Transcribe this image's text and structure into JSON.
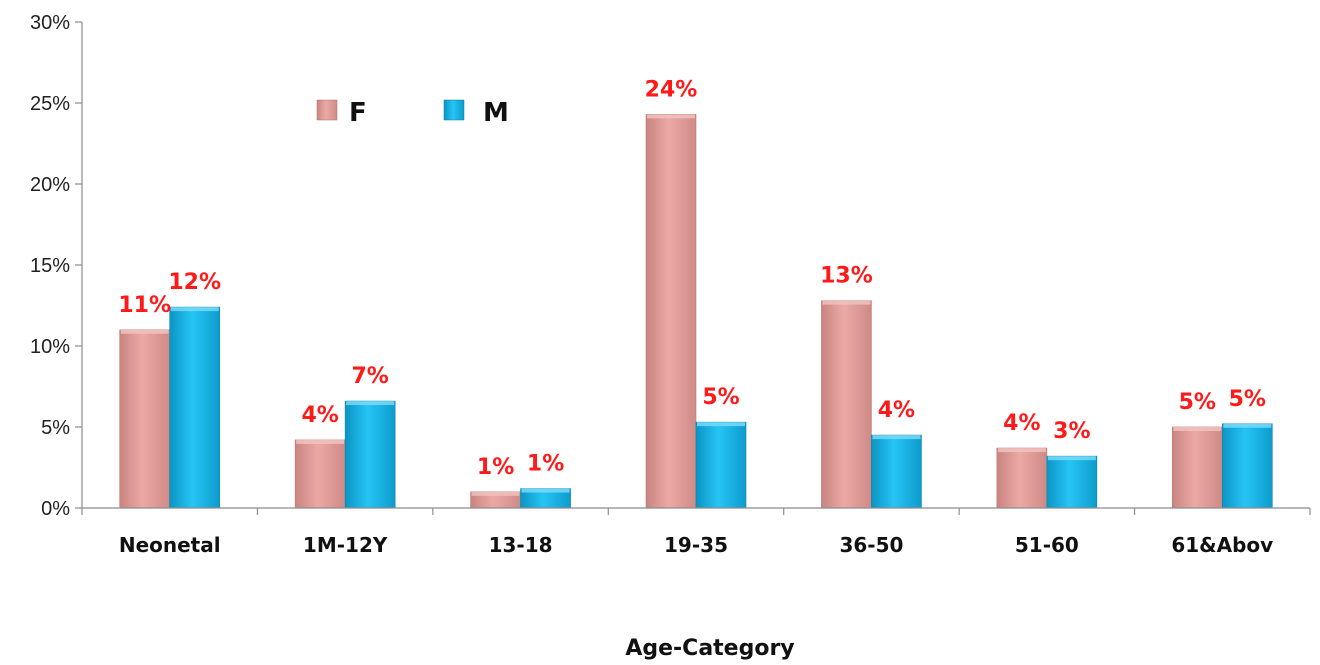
{
  "chart_data": {
    "type": "bar",
    "categories": [
      "Neonetal",
      "1M-12Y",
      "13-18",
      "19-35",
      "36-50",
      "51-60",
      "61&Abov"
    ],
    "series": [
      {
        "name": "F",
        "color": "#e6a09c",
        "values": [
          11.0,
          4.2,
          1.0,
          24.3,
          12.8,
          3.7,
          5.0
        ],
        "labels": [
          "11%",
          "4%",
          "1%",
          "24%",
          "13%",
          "4%",
          "5%"
        ]
      },
      {
        "name": "M",
        "color": "#13b7ec",
        "values": [
          12.4,
          6.6,
          1.2,
          5.3,
          4.5,
          3.2,
          5.2
        ],
        "labels": [
          "12%",
          "7%",
          "1%",
          "5%",
          "4%",
          "3%",
          "5%"
        ]
      }
    ],
    "xlabel": "Age-Category",
    "ylabel": "",
    "ylim": [
      0,
      30
    ],
    "yticks": [
      "0%",
      "5%",
      "10%",
      "15%",
      "20%",
      "25%",
      "30%"
    ],
    "grid": false,
    "legend_position": "top-left"
  }
}
